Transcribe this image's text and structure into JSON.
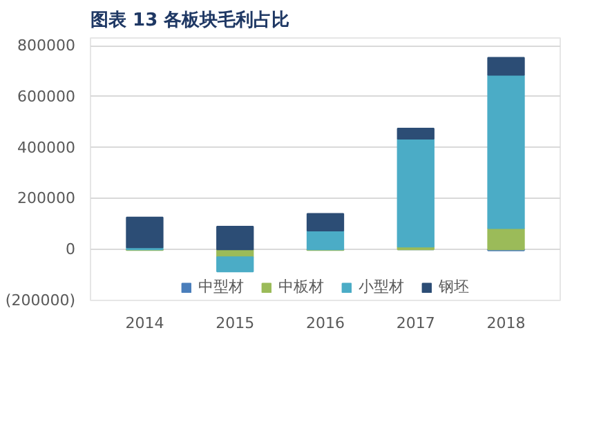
{
  "chart_data": {
    "type": "bar",
    "title": "图表 13 各板块毛利占比",
    "stacked": true,
    "categories": [
      "2014",
      "2015",
      "2016",
      "2017",
      "2018"
    ],
    "series": [
      {
        "name": "中型材",
        "color": "#4a7ebb",
        "values": [
          0,
          0,
          0,
          0,
          -4000
        ]
      },
      {
        "name": "中板材",
        "color": "#9bbb59",
        "values": [
          -3000,
          -30000,
          -3000,
          11000,
          83000
        ]
      },
      {
        "name": "小型材",
        "color": "#4bacc6",
        "values": [
          8000,
          -57000,
          74000,
          423000,
          602000
        ]
      },
      {
        "name": "钢坯",
        "color": "#2c4d75",
        "values": [
          118000,
          90000,
          66000,
          41000,
          68000
        ]
      }
    ],
    "ylim": [
      -200000,
      830000
    ],
    "yticks": [
      {
        "value": -200000,
        "label": "(200000)"
      },
      0,
      200000,
      400000,
      600000,
      800000
    ],
    "grid": "y",
    "legend": "bottom"
  }
}
